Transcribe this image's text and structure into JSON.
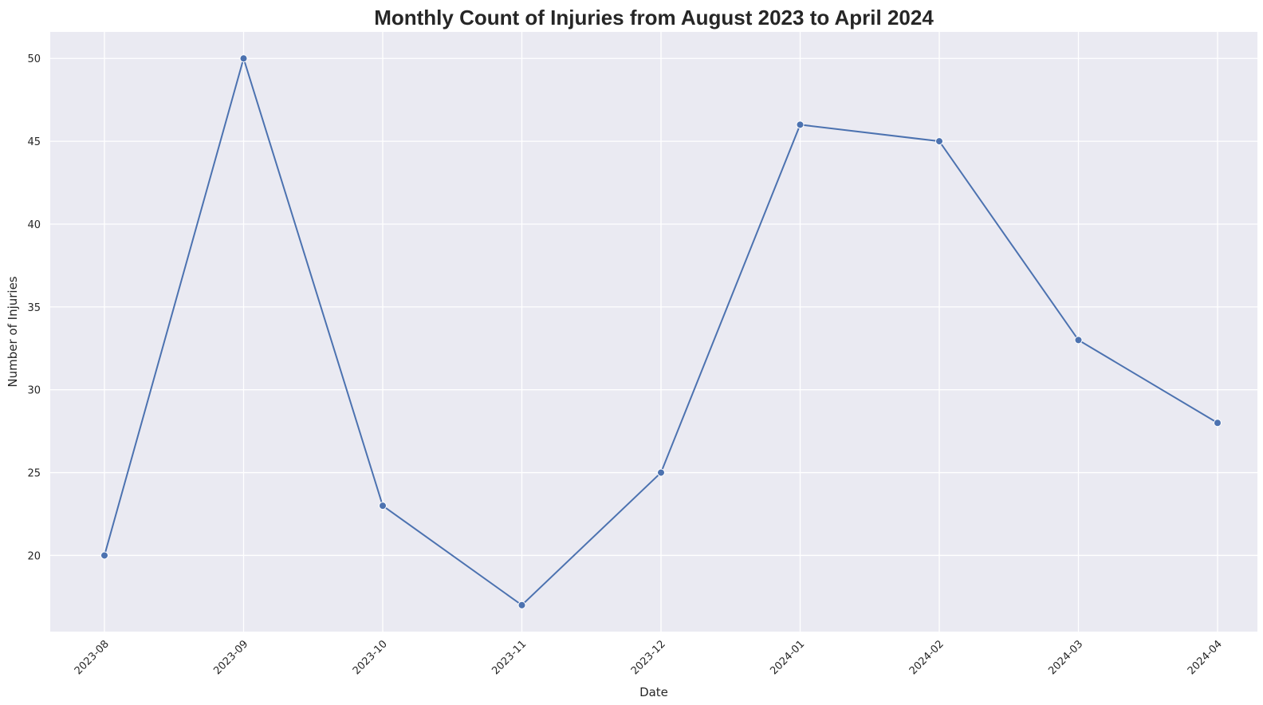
{
  "chart_data": {
    "type": "line",
    "title": "Monthly Count of Injuries from August 2023 to April 2024",
    "xlabel": "Date",
    "ylabel": "Number of Injuries",
    "x": [
      "2023-08",
      "2023-09",
      "2023-10",
      "2023-11",
      "2023-12",
      "2024-01",
      "2024-02",
      "2024-03",
      "2024-04"
    ],
    "values": [
      20,
      50,
      23,
      17,
      25,
      46,
      45,
      33,
      28
    ],
    "yticks": [
      20,
      25,
      30,
      35,
      40,
      45,
      50
    ],
    "ylim": [
      15.4,
      51.6
    ],
    "grid": true,
    "colors": {
      "background": "#eaeaf2",
      "grid": "#ffffff",
      "line": "#4c72b0",
      "marker": "#4c72b0"
    }
  }
}
